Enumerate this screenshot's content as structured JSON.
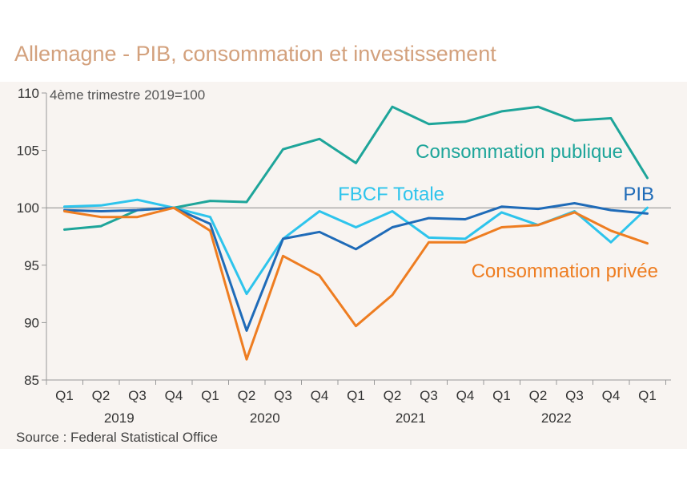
{
  "title": "Allemagne - PIB, consommation et investissement",
  "source": "Source : Federal Statistical Office",
  "chart_data": {
    "type": "line",
    "subtitle": "4ème trimestre 2019=100",
    "categories": [
      "Q1",
      "Q2",
      "Q3",
      "Q4",
      "Q1",
      "Q2",
      "Q3",
      "Q4",
      "Q1",
      "Q2",
      "Q3",
      "Q4",
      "Q1",
      "Q2",
      "Q3",
      "Q4",
      "Q1"
    ],
    "year_labels": [
      {
        "label": "2019",
        "start": 0,
        "end": 3
      },
      {
        "label": "2020",
        "start": 4,
        "end": 7
      },
      {
        "label": "2021",
        "start": 8,
        "end": 11
      },
      {
        "label": "2022",
        "start": 12,
        "end": 15
      }
    ],
    "ylim": [
      85,
      110
    ],
    "yticks": [
      85,
      90,
      95,
      100,
      105,
      110
    ],
    "reference_line": 100,
    "series": [
      {
        "name": "Consommation publique",
        "color": "#1ea59a",
        "values": [
          98.1,
          98.4,
          99.8,
          100.0,
          100.6,
          100.5,
          105.1,
          106.0,
          103.9,
          108.8,
          107.3,
          107.5,
          108.4,
          108.8,
          107.6,
          107.8,
          102.6
        ]
      },
      {
        "name": "FBCF Totale",
        "color": "#2ec4ec",
        "values": [
          100.1,
          100.2,
          100.7,
          100.0,
          99.2,
          92.5,
          97.3,
          99.7,
          98.3,
          99.7,
          97.4,
          97.3,
          99.6,
          98.5,
          99.7,
          97.0,
          100.0
        ]
      },
      {
        "name": "PIB",
        "color": "#1f6bb8",
        "values": [
          99.8,
          99.7,
          99.8,
          100.0,
          98.6,
          89.3,
          97.3,
          97.9,
          96.4,
          98.3,
          99.1,
          99.0,
          100.1,
          99.9,
          100.4,
          99.8,
          99.5
        ]
      },
      {
        "name": "Consommation privée",
        "color": "#ee7d21",
        "values": [
          99.7,
          99.2,
          99.2,
          100.0,
          98.0,
          86.8,
          95.8,
          94.1,
          89.7,
          92.4,
          97.0,
          97.0,
          98.3,
          98.5,
          99.6,
          98.0,
          96.9
        ]
      }
    ]
  }
}
